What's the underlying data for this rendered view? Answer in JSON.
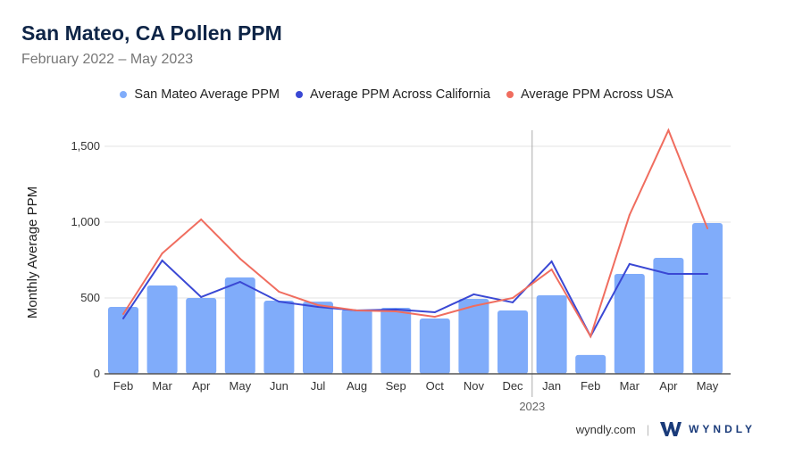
{
  "header": {
    "title": "San Mateo, CA Pollen PPM",
    "subtitle": "February 2022 – May 2023"
  },
  "footer": {
    "site": "wyndly.com",
    "brand": "WYNDLY"
  },
  "chart_data": {
    "type": "bar",
    "title": "San Mateo, CA Pollen PPM",
    "subtitle": "February 2022 – May 2023",
    "ylabel": "Monthly Average PPM",
    "xlabel": "",
    "ylim": [
      0,
      1600
    ],
    "yticks": [
      0,
      500,
      1000,
      1500
    ],
    "ytick_labels": [
      "0",
      "500",
      "1,000",
      "1,500"
    ],
    "grid": true,
    "legend_position": "top",
    "categories": [
      "Feb",
      "Mar",
      "Apr",
      "May",
      "Jun",
      "Jul",
      "Aug",
      "Sep",
      "Oct",
      "Nov",
      "Dec",
      "Jan",
      "Feb",
      "Mar",
      "Apr",
      "May"
    ],
    "year_marker": {
      "label": "2023",
      "before_index": 11
    },
    "series": [
      {
        "name": "San Mateo Average PPM",
        "type": "bar",
        "color": "#80acfa",
        "values": [
          441,
          582,
          500,
          635,
          482,
          476,
          424,
          435,
          365,
          494,
          418,
          518,
          124,
          659,
          765,
          994
        ]
      },
      {
        "name": "Average PPM Across California",
        "type": "line",
        "color": "#3a48d4",
        "values": [
          365,
          747,
          506,
          606,
          476,
          441,
          418,
          424,
          406,
          524,
          471,
          741,
          247,
          724,
          659,
          659
        ]
      },
      {
        "name": "Average PPM Across USA",
        "type": "line",
        "color": "#f06d5f",
        "values": [
          394,
          794,
          1018,
          759,
          541,
          453,
          418,
          412,
          376,
          447,
          500,
          688,
          247,
          1047,
          1606,
          959
        ]
      }
    ]
  }
}
